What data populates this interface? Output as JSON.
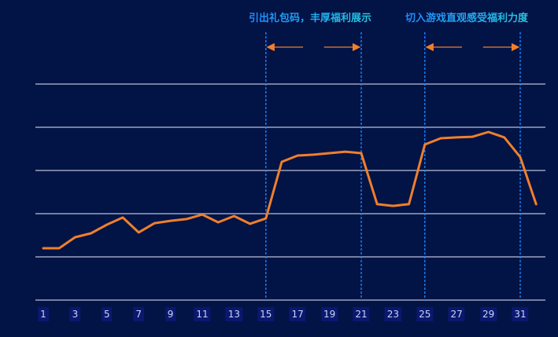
{
  "chart_data": {
    "type": "line",
    "title": "",
    "xlabel": "",
    "ylabel": "",
    "ylim": [
      0,
      100
    ],
    "y_gridlines": [
      0,
      20,
      40,
      60,
      80,
      100
    ],
    "y_tick_labels_visible": false,
    "grid": true,
    "x": [
      1,
      2,
      3,
      4,
      5,
      6,
      7,
      8,
      9,
      10,
      11,
      12,
      13,
      14,
      15,
      16,
      17,
      18,
      19,
      20,
      21,
      22,
      23,
      24,
      25,
      26,
      27,
      28,
      29,
      30,
      31,
      32
    ],
    "x_tick_labels": [
      "1",
      "3",
      "5",
      "7",
      "9",
      "11",
      "13",
      "15",
      "17",
      "19",
      "21",
      "23",
      "25",
      "27",
      "29",
      "31"
    ],
    "series": [
      {
        "name": "value",
        "color": "#f07f2c",
        "values": [
          24.0,
          24.0,
          29.1,
          30.9,
          34.9,
          38.2,
          31.3,
          35.6,
          36.7,
          37.5,
          39.6,
          36.0,
          38.9,
          35.3,
          37.8,
          64.0,
          66.9,
          67.3,
          68.0,
          68.7,
          68.0,
          44.4,
          43.6,
          44.4,
          72.0,
          74.9,
          75.3,
          75.6,
          77.8,
          75.3,
          66.2,
          44.4
        ]
      }
    ],
    "annotations": [
      {
        "text": "引出礼包码，丰厚福利展示",
        "x_start": 15,
        "x_end": 21,
        "style": "dashed-vertical-lines-with-double-arrow"
      },
      {
        "text": "切入游戏直观感受福利力度",
        "x_start": 25,
        "x_end": 31,
        "style": "dashed-vertical-lines-with-double-arrow"
      }
    ],
    "legend": null
  },
  "colors": {
    "background": "#021346",
    "grid": "#9aa3bd",
    "line": "#f07f2c",
    "annotation_line": "#1e8bff",
    "arrow": "#f07f2c",
    "tick_text": "#c8d4f0",
    "tick_bg": "#0a1870"
  }
}
